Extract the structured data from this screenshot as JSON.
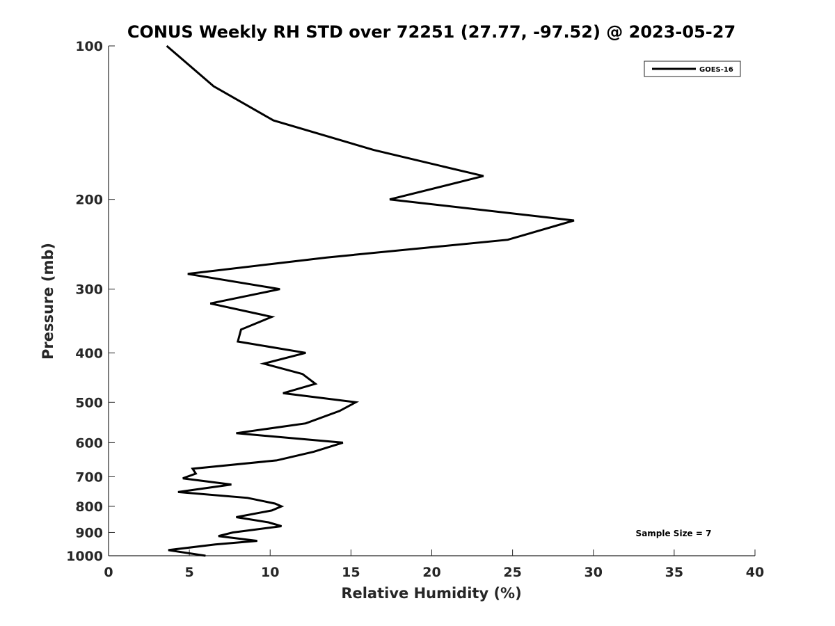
{
  "chart_data": {
    "type": "line",
    "title": "CONUS Weekly RH STD over 72251 (27.77, -97.52) @ 2023-05-27",
    "xlabel": "Relative Humidity (%)",
    "ylabel": "Pressure (mb)",
    "xlim": [
      0,
      40
    ],
    "ylim": [
      1000,
      100
    ],
    "y_scale": "log",
    "grid": false,
    "legend_position": "top-right",
    "x_ticks": [
      "0",
      "5",
      "10",
      "15",
      "20",
      "25",
      "30",
      "35",
      "40"
    ],
    "y_ticks": [
      "100",
      "200",
      "300",
      "400",
      "500",
      "600",
      "700",
      "800",
      "900",
      "1000"
    ],
    "series": [
      {
        "name": "GOES-16",
        "color": "#000000",
        "points": [
          [
            3.6,
            100
          ],
          [
            6.5,
            120
          ],
          [
            10.2,
            140
          ],
          [
            16.4,
            160
          ],
          [
            23.2,
            180
          ],
          [
            17.4,
            200
          ],
          [
            28.8,
            220
          ],
          [
            24.7,
            240
          ],
          [
            13.5,
            260
          ],
          [
            4.9,
            280
          ],
          [
            10.6,
            300
          ],
          [
            6.3,
            320
          ],
          [
            10.1,
            340
          ],
          [
            8.2,
            360
          ],
          [
            8.0,
            380
          ],
          [
            12.2,
            400
          ],
          [
            9.6,
            420
          ],
          [
            12.0,
            440
          ],
          [
            12.8,
            460
          ],
          [
            10.8,
            480
          ],
          [
            15.3,
            500
          ],
          [
            14.3,
            520
          ],
          [
            12.2,
            550
          ],
          [
            7.9,
            575
          ],
          [
            14.5,
            600
          ],
          [
            12.7,
            625
          ],
          [
            10.4,
            650
          ],
          [
            5.2,
            675
          ],
          [
            5.4,
            690
          ],
          [
            4.6,
            705
          ],
          [
            7.6,
            725
          ],
          [
            4.3,
            750
          ],
          [
            8.6,
            770
          ],
          [
            10.3,
            790
          ],
          [
            10.7,
            800
          ],
          [
            10.1,
            815
          ],
          [
            7.9,
            840
          ],
          [
            9.9,
            860
          ],
          [
            10.7,
            875
          ],
          [
            7.7,
            900
          ],
          [
            6.8,
            915
          ],
          [
            9.2,
            935
          ],
          [
            6.6,
            950
          ],
          [
            3.7,
            975
          ],
          [
            6.0,
            1000
          ]
        ]
      }
    ],
    "annotation": "Sample Size = 7"
  }
}
